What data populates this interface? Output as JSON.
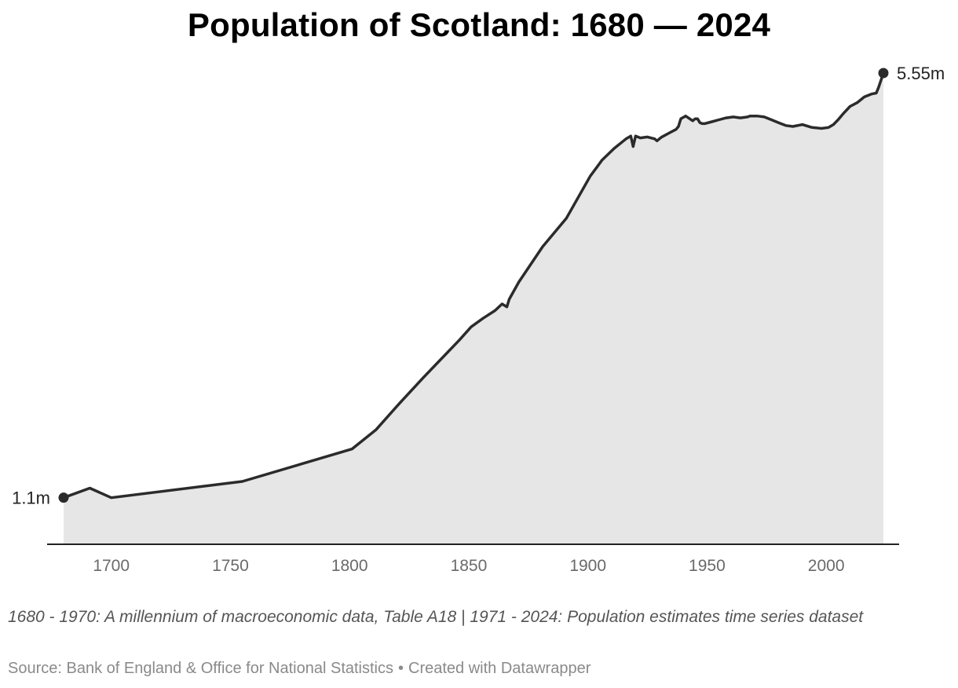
{
  "title": "Population of Scotland: 1680 — 2024",
  "note": "1680 - 1970: A millennium of macroeconomic data, Table A18 | 1971 - 2024: Population estimates time series dataset",
  "footer": {
    "source": "Source: Bank of England & Office for National Statistics",
    "separator": "•",
    "credit": "Created with Datawrapper"
  },
  "colors": {
    "line": "#2b2b2b",
    "area": "#e6e6e6",
    "axis": "#222222",
    "tick_text": "#6a6a6a"
  },
  "chart_data": {
    "type": "area",
    "title": "Population of Scotland: 1680 — 2024",
    "xlim": [
      1680,
      2024
    ],
    "ylim": [
      0.62,
      5.55
    ],
    "x_ticks": [
      1700,
      1750,
      1800,
      1850,
      1900,
      1950,
      2000
    ],
    "x_tick_labels": [
      "1700",
      "1750",
      "1800",
      "1850",
      "1900",
      "1950",
      "2000"
    ],
    "grid": false,
    "annotations": [
      {
        "x": 1680,
        "y": 1.1,
        "label": "1.1m"
      },
      {
        "x": 2024,
        "y": 5.55,
        "label": "5.55m"
      }
    ],
    "x": [
      1680,
      1691,
      1700,
      1755,
      1801,
      1811,
      1821,
      1831,
      1841,
      1846,
      1851,
      1856,
      1861,
      1864,
      1866,
      1867,
      1871,
      1881,
      1891,
      1901,
      1906,
      1911,
      1916,
      1918,
      1919,
      1920,
      1921,
      1922,
      1925,
      1928,
      1929,
      1930,
      1931,
      1934,
      1937,
      1938,
      1939,
      1941,
      1944,
      1945,
      1946,
      1947,
      1948,
      1949,
      1952,
      1955,
      1958,
      1961,
      1964,
      1967,
      1968,
      1971,
      1974,
      1977,
      1980,
      1983,
      1986,
      1990,
      1994,
      1998,
      2001,
      2003,
      2005,
      2007,
      2010,
      2013,
      2016,
      2019,
      2021,
      2022,
      2024
    ],
    "values": [
      1.1,
      1.2,
      1.1,
      1.27,
      1.61,
      1.81,
      2.09,
      2.36,
      2.62,
      2.75,
      2.89,
      2.98,
      3.06,
      3.13,
      3.1,
      3.18,
      3.36,
      3.73,
      4.03,
      4.47,
      4.64,
      4.76,
      4.86,
      4.89,
      4.78,
      4.89,
      4.88,
      4.87,
      4.88,
      4.86,
      4.84,
      4.86,
      4.88,
      4.92,
      4.96,
      4.99,
      5.07,
      5.1,
      5.05,
      5.07,
      5.07,
      5.03,
      5.02,
      5.02,
      5.04,
      5.06,
      5.08,
      5.09,
      5.08,
      5.09,
      5.1,
      5.1,
      5.09,
      5.06,
      5.03,
      5.0,
      4.99,
      5.01,
      4.98,
      4.97,
      4.98,
      5.01,
      5.06,
      5.12,
      5.2,
      5.24,
      5.3,
      5.33,
      5.34,
      5.4,
      5.55
    ]
  }
}
